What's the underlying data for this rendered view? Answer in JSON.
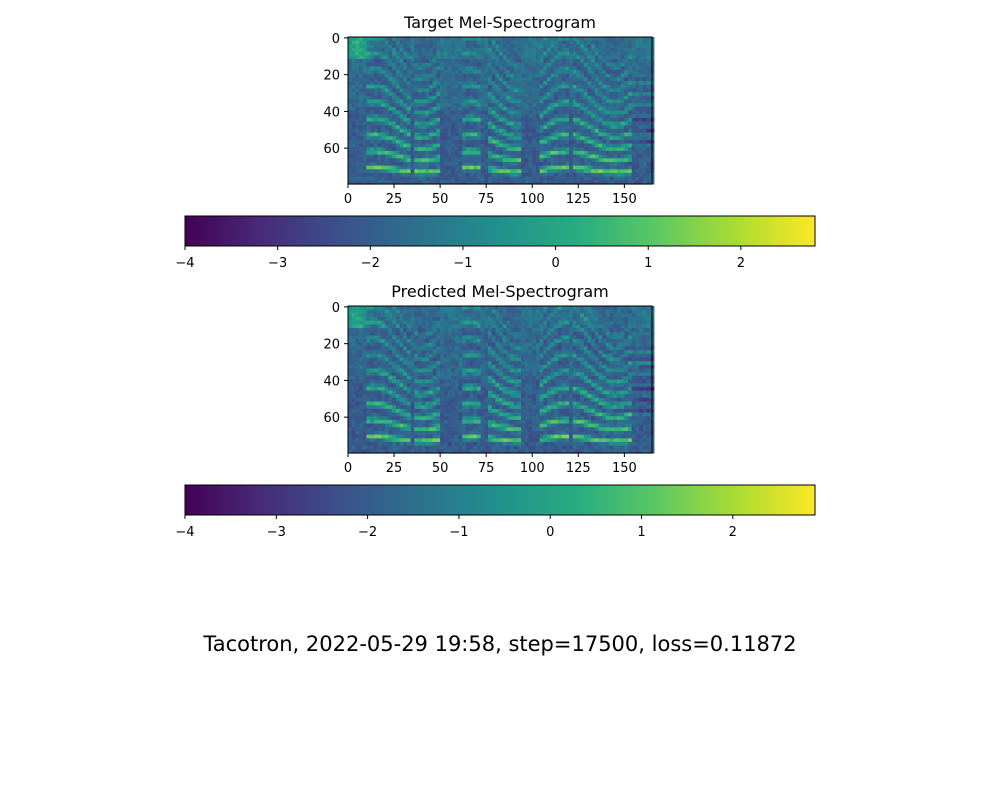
{
  "figure": {
    "caption": "Tacotron, 2022-05-29 19:58, step=17500, loss=0.11872"
  },
  "chart_data": [
    {
      "type": "heatmap",
      "title": "Target Mel-Spectrogram",
      "xlabel": "",
      "ylabel": "",
      "x_ticks": [
        0,
        25,
        50,
        75,
        100,
        125,
        150
      ],
      "y_ticks": [
        0,
        20,
        40,
        60
      ],
      "xlim": [
        0,
        165
      ],
      "ylim": [
        79,
        0
      ],
      "n_frames": 165,
      "n_mels": 80,
      "colormap": "viridis",
      "colorbar": {
        "min": -4,
        "max": 2.8,
        "ticks": [
          -4,
          -3,
          -2,
          -1,
          0,
          1,
          2
        ],
        "orientation": "horizontal"
      }
    },
    {
      "type": "heatmap",
      "title": "Predicted Mel-Spectrogram",
      "xlabel": "",
      "ylabel": "",
      "x_ticks": [
        0,
        25,
        50,
        75,
        100,
        125,
        150
      ],
      "y_ticks": [
        0,
        20,
        40,
        60
      ],
      "xlim": [
        0,
        165
      ],
      "ylim": [
        79,
        0
      ],
      "n_frames": 165,
      "n_mels": 80,
      "colormap": "viridis",
      "colorbar": {
        "min": -4,
        "max": 2.9,
        "ticks": [
          -4,
          -3,
          -2,
          -1,
          0,
          1,
          2
        ],
        "orientation": "horizontal"
      }
    }
  ]
}
